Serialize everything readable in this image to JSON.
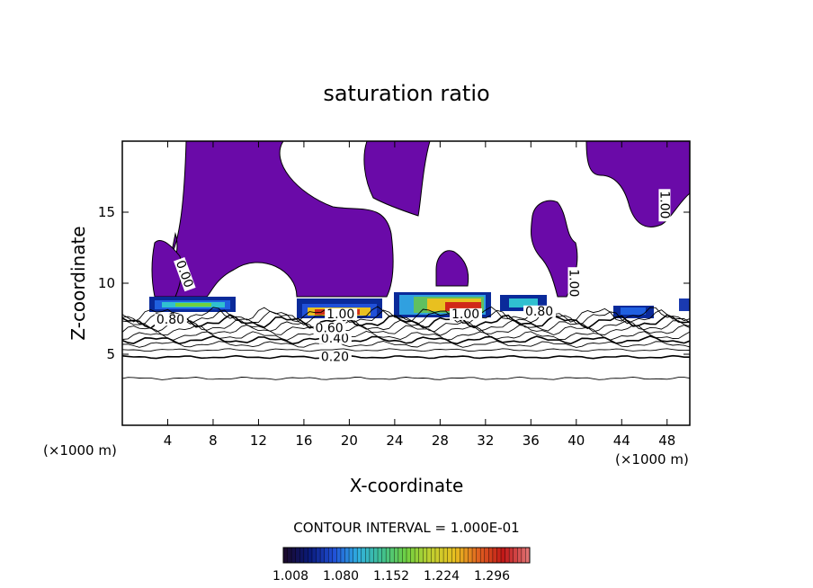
{
  "chart_data": {
    "type": "contour",
    "title": "saturation ratio",
    "xlabel": "X-coordinate",
    "ylabel": "Z-coordinate",
    "x_unit": "(×1000 m)",
    "x_unit_right": "(×1000 m)",
    "xlim": [
      0,
      50
    ],
    "ylim": [
      0,
      20
    ],
    "x_ticks": [
      4,
      8,
      12,
      16,
      20,
      24,
      28,
      32,
      36,
      40,
      44,
      48
    ],
    "y_ticks": [
      5,
      10,
      15
    ],
    "contour_interval_text": "CONTOUR INTERVAL = 1.000E-01",
    "contour_lines": [
      {
        "level": "0.20",
        "z": 4.8
      },
      {
        "level": "0.40",
        "z": 6.0
      },
      {
        "level": "0.60",
        "z": 6.7
      },
      {
        "level": "0.80",
        "z": 7.3
      },
      {
        "level": "1.00",
        "z": 7.8
      }
    ],
    "contour_labels": [
      {
        "text": "0.20",
        "x": 17.5,
        "z": 4.6
      },
      {
        "text": "0.40",
        "x": 17.5,
        "z": 5.9
      },
      {
        "text": "0.60",
        "x": 17.0,
        "z": 6.6
      },
      {
        "text": "0.80",
        "x": 3.0,
        "z": 7.2
      },
      {
        "text": "1.00",
        "x": 18.0,
        "z": 7.6
      },
      {
        "text": "1.00",
        "x": 29.0,
        "z": 7.6
      },
      {
        "text": "0.80",
        "x": 35.5,
        "z": 7.8
      },
      {
        "text": "0.00",
        "x": 4.8,
        "z": 11.5
      },
      {
        "text": "1.00",
        "x": 39.5,
        "z": 11.0
      },
      {
        "text": "1.00",
        "x": 47.5,
        "z": 16.5
      }
    ],
    "colorbar": {
      "ticks": [
        "1.008",
        "1.080",
        "1.152",
        "1.224",
        "1.296"
      ],
      "colors": [
        "#1a0a2e",
        "#0a1a7a",
        "#2050d8",
        "#30b0e0",
        "#40c090",
        "#70d040",
        "#c0d030",
        "#e8c020",
        "#e06020",
        "#c01818",
        "#e07070"
      ]
    },
    "purple_color": "#6a0aa8"
  }
}
